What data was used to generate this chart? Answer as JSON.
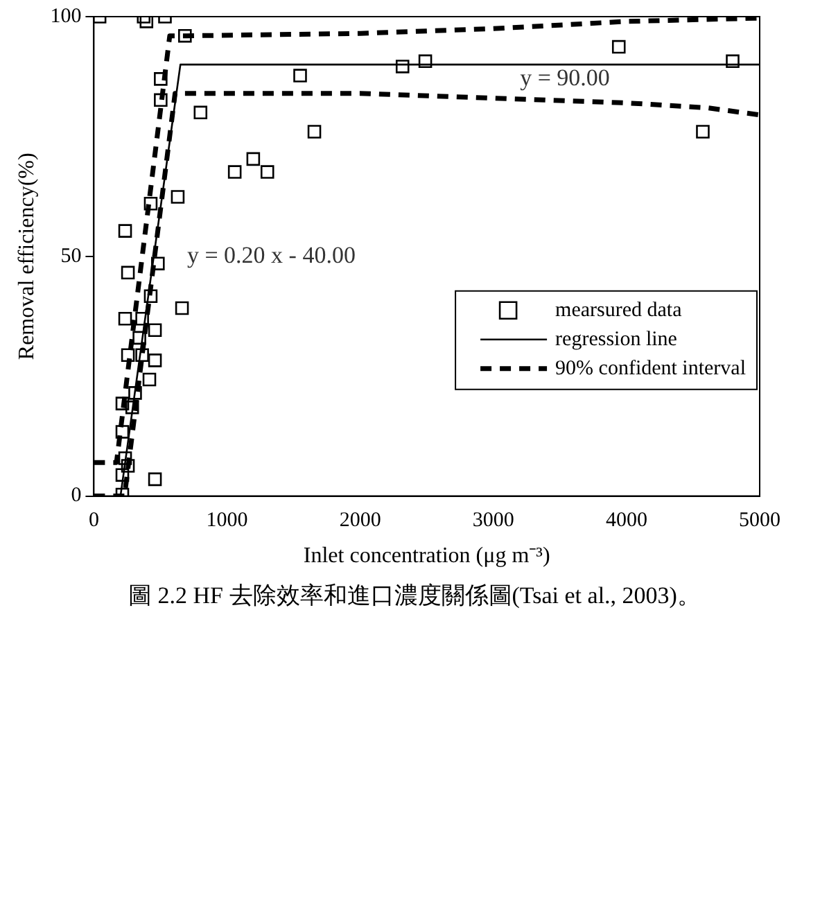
{
  "chart_data": {
    "type": "scatter",
    "xlabel": "Inlet concentration (μg m⁻³)",
    "ylabel": "Removal efficiency(%)",
    "xlim": [
      0,
      5000
    ],
    "xticks": [
      0,
      1000,
      2000,
      3000,
      4000,
      5000
    ],
    "ylim": [
      0,
      100
    ],
    "yticks": [
      0,
      50,
      100
    ],
    "grid": false,
    "legend": "right",
    "series": [
      {
        "name": "mearsured data",
        "type": "scatter",
        "marker": "square",
        "color": "#000000",
        "x": [
          43,
          374,
          395,
          534,
          684,
          502,
          1549,
          502,
          801,
          1656,
          1197,
          1058,
          1303,
          427,
          630,
          235,
          481,
          256,
          427,
          662,
          235,
          363,
          459,
          342,
          256,
          363,
          459,
          417,
          214,
          310,
          288,
          214,
          235,
          256,
          214,
          459,
          214,
          2318,
          2489,
          3942,
          4797,
          4573
        ],
        "values": [
          100,
          100,
          99,
          100,
          96,
          87,
          87.7,
          82.6,
          80,
          76,
          70.3,
          67.6,
          67.6,
          61,
          62.4,
          55.3,
          48.5,
          46.6,
          41.7,
          39.2,
          37,
          37,
          34.6,
          33,
          29.4,
          29.4,
          28.3,
          24.3,
          19.3,
          21.5,
          18.5,
          13.4,
          7.9,
          6.3,
          4.4,
          3.5,
          0.3,
          89.6,
          90.7,
          93.7,
          90.7,
          76
        ]
      },
      {
        "name": "regression line",
        "type": "line",
        "marker": "none",
        "line_style": "solid",
        "color": "#000000",
        "x": [
          200,
          650,
          5000
        ],
        "values": [
          0,
          90,
          90
        ]
      },
      {
        "name": "90% confident interval",
        "type": "line",
        "marker": "none",
        "line_style": "dashed",
        "color": "#000000",
        "x": [
          0,
          170,
          570,
          700,
          2000,
          3000,
          4000,
          5000
        ],
        "values": [
          7,
          7,
          96,
          96,
          96.5,
          97.5,
          99,
          99.7
        ]
      },
      {
        "type": "line",
        "marker": "none",
        "line_style": "dashed",
        "color": "#000000",
        "x": [
          0,
          230,
          610,
          700,
          2000,
          3000,
          4000,
          4600,
          5000
        ],
        "values": [
          0,
          0,
          84,
          84,
          84,
          83,
          82,
          81,
          79.5
        ]
      }
    ],
    "annotations": [
      "y = 0.20 x - 40.00",
      "y = 90.00",
      "圖 2.2 HF 去除效率和進口濃度關係圖(Tsai et al., 2003)。"
    ]
  }
}
